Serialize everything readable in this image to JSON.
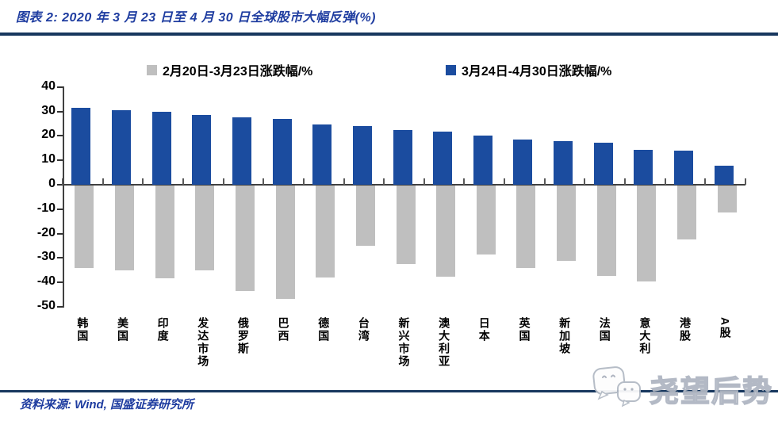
{
  "header": {
    "title": "图表 2: 2020 年 3 月 23 日至 4 月 30 日全球股市大幅反弹(%)"
  },
  "footer": {
    "source_note": "资料来源: Wind, 国盛证券研究所"
  },
  "watermark": {
    "text": "尧望后势",
    "icon": "wechat-logo-icon"
  },
  "colors": {
    "title_blue": "#1F3DA0",
    "rule_navy": "#17375E",
    "bar_gray": "#BFBFBF",
    "bar_blue": "#1B4C9F",
    "axis": "#404040"
  },
  "chart_data": {
    "type": "bar",
    "title": "2020 年 3 月 23 日至 4 月 30 日全球股市大幅反弹(%)",
    "categories": [
      "韩国",
      "美国",
      "印度",
      "发达市场",
      "俄罗斯",
      "巴西",
      "德国",
      "台湾",
      "新兴市场",
      "澳大利亚",
      "日本",
      "英国",
      "新加坡",
      "法国",
      "意大利",
      "港股",
      "A股"
    ],
    "series": [
      {
        "name": "2月20日-3月23日涨跌幅/%",
        "color": "#BFBFBF",
        "values": [
          -33.7,
          -34.7,
          -38.0,
          -34.7,
          -43.1,
          -46.4,
          -37.6,
          -24.8,
          -32.1,
          -37.4,
          -28.3,
          -33.6,
          -30.9,
          -36.9,
          -39.4,
          -22.2,
          -10.9
        ]
      },
      {
        "name": "3月24日-4月30日涨跌幅/%",
        "color": "#1B4C9F",
        "values": [
          31.6,
          30.4,
          30.0,
          28.4,
          27.5,
          27.0,
          24.6,
          24.0,
          22.4,
          21.7,
          20.0,
          18.5,
          17.8,
          17.2,
          14.3,
          13.9,
          7.7
        ]
      }
    ],
    "xlabel": "",
    "ylabel": "",
    "ylim": [
      -50,
      40
    ],
    "ytick_step": 10,
    "grid": false,
    "legend_position": "top"
  }
}
